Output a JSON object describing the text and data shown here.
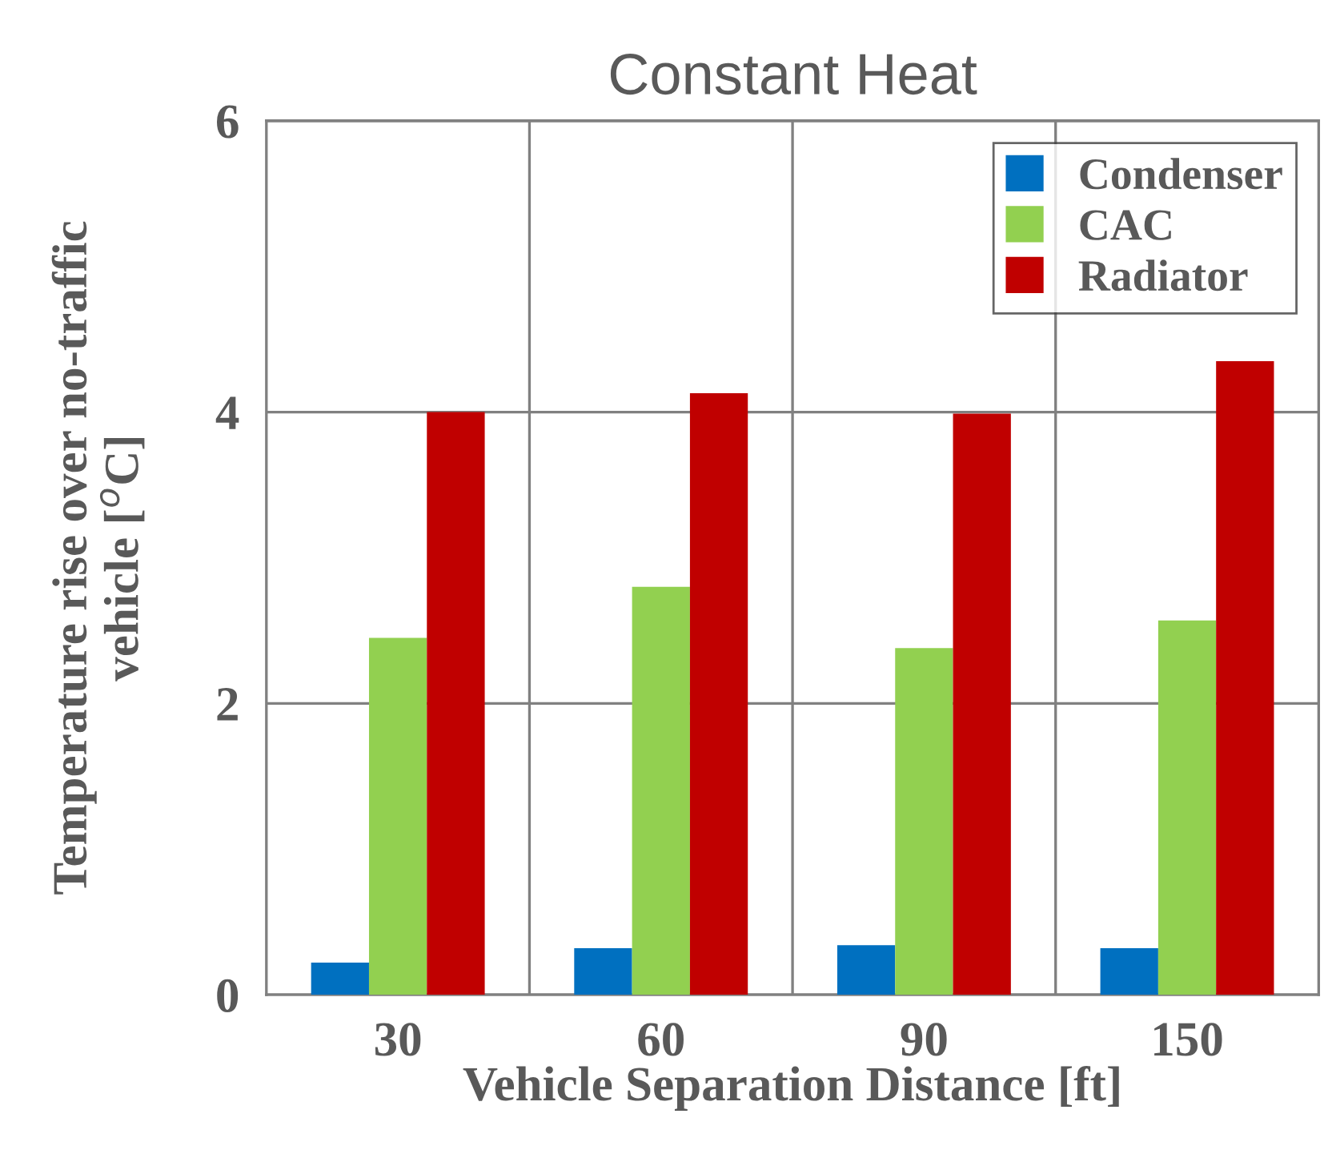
{
  "chart_data": {
    "type": "bar",
    "title": "Constant Heat",
    "xlabel": "Vehicle Separation Distance [ft]",
    "ylabel": "Temperature rise over no-traffic\nvehicle [$^{o}$C]",
    "categories": [
      "30",
      "60",
      "90",
      "150"
    ],
    "series": [
      {
        "name": "Condenser",
        "color": "#0070c0",
        "values": [
          0.22,
          0.32,
          0.34,
          0.32
        ]
      },
      {
        "name": "CAC",
        "color": "#92d050",
        "values": [
          2.45,
          2.8,
          2.38,
          2.57
        ]
      },
      {
        "name": "Radiator",
        "color": "#c00000",
        "values": [
          4.0,
          4.13,
          3.99,
          4.35
        ]
      }
    ],
    "ylim": [
      0,
      6
    ],
    "yticks": [
      0,
      2,
      4,
      6
    ],
    "grid": true,
    "legend": "top right"
  }
}
